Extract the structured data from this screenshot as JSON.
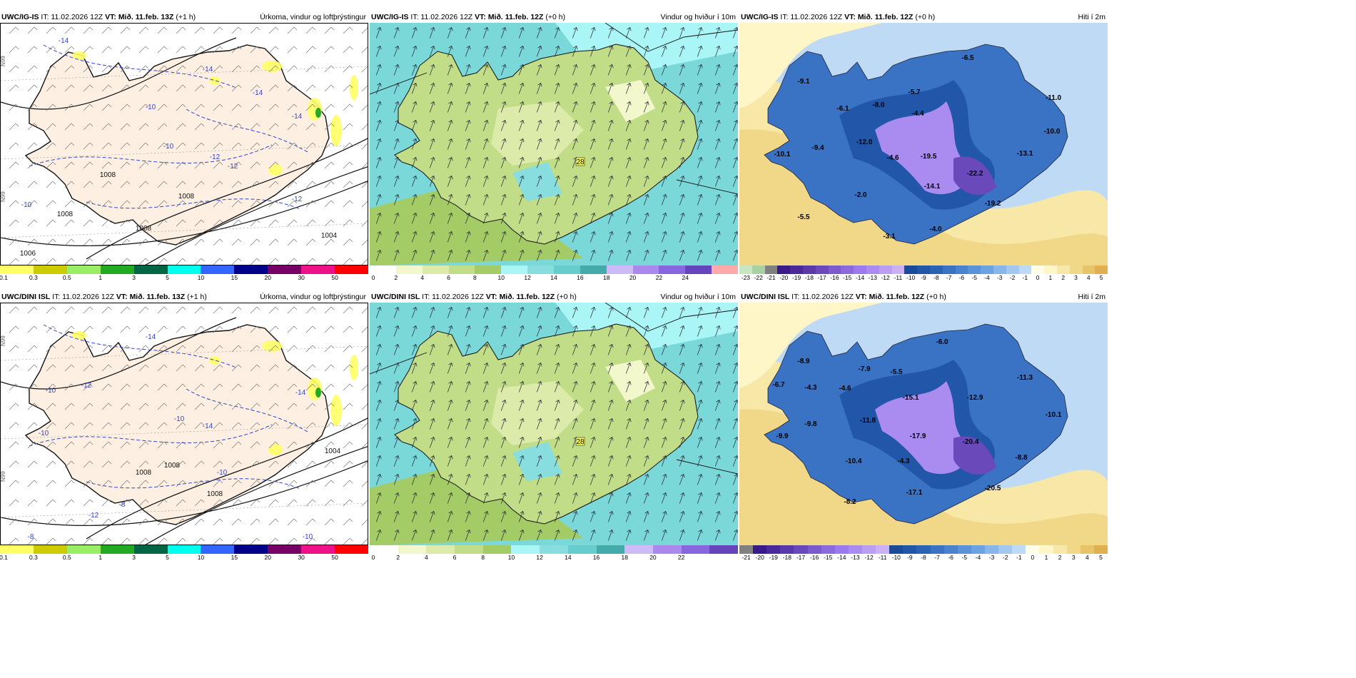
{
  "panels": [
    {
      "model": "UWC/IG-IS",
      "it": "IT: 11.02.2026 12Z",
      "vt_label": "VT:",
      "vt": "Mið. 11.feb. 13Z",
      "lead": "(+1 h)",
      "title": "Úrkoma, vindur og loftþrýstingur",
      "kind": "precip",
      "map_labels": [
        "-14",
        "-14",
        "-14",
        "-10",
        "-10",
        "-12",
        "-12",
        "-10",
        "-12",
        "-14",
        "1008",
        "1008",
        "1004",
        "1008",
        "1006",
        "1008"
      ],
      "legend_ticks": [
        "0.1",
        "0.3",
        "0.5",
        "1",
        "3",
        "5",
        "10",
        "15",
        "20",
        "30",
        "50"
      ],
      "legend_colors": [
        "#ffff66",
        "#cccc00",
        "#99ee66",
        "#22aa22",
        "#006644",
        "#00ffee",
        "#3366ff",
        "#000088",
        "#770066",
        "#ee1188",
        "#ff0000"
      ]
    },
    {
      "model": "UWC/IG-IS",
      "it": "IT: 11.02.2026 12Z",
      "vt_label": "VT:",
      "vt": "Mið. 11.feb. 12Z",
      "lead": "(+0 h)",
      "title": "Vindur og hviður í 10m",
      "kind": "wind",
      "map_labels": [
        "28"
      ],
      "legend_ticks": [
        "0",
        "2",
        "4",
        "6",
        "8",
        "10",
        "12",
        "14",
        "16",
        "18",
        "20",
        "22",
        "24"
      ],
      "legend_colors": [
        "#ffffff",
        "#f2f7cc",
        "#dcebaa",
        "#c2dd88",
        "#a4cc66",
        "#aaf6f6",
        "#88dede",
        "#66cccc",
        "#44aaaa",
        "#ccbbf6",
        "#aa88ee",
        "#8866dd",
        "#6644bb",
        "#ffaaaa"
      ]
    },
    {
      "model": "UWC/IG-IS",
      "it": "IT: 11.02.2026 12Z",
      "vt_label": "VT:",
      "vt": "Mið. 11.feb. 12Z",
      "lead": "(+0 h)",
      "title": "Hiti í 2m",
      "kind": "temp",
      "map_labels": [
        "-9.1",
        "-6.1",
        "-8.0",
        "-5.7",
        "-6.5",
        "-11.0",
        "-10.0",
        "-12.0",
        "-9.4",
        "-10.1",
        "-4.4",
        "-19.5",
        "-4.6",
        "-14.1",
        "-22.2",
        "-13.1",
        "-2.0",
        "-19.2",
        "-5.5",
        "-4.0",
        "-3.1"
      ],
      "legend_ticks": [
        "-23",
        "-22",
        "-21",
        "-20",
        "-19",
        "-18",
        "-17",
        "-16",
        "-15",
        "-14",
        "-13",
        "-12",
        "-11",
        "-10",
        "-9",
        "-8",
        "-7",
        "-6",
        "-5",
        "-4",
        "-3",
        "-2",
        "-1",
        "0",
        "1",
        "2",
        "3",
        "4",
        "5"
      ],
      "legend_colors": [
        "#c8e6c0",
        "#a8d0a0",
        "#808080",
        "#3a1a88",
        "#4a2a9a",
        "#5a3aaa",
        "#6a4abb",
        "#7a5acc",
        "#8a6add",
        "#9a7aee",
        "#aa8cf0",
        "#bb9ef2",
        "#ccb0f4",
        "#1a4a9a",
        "#2256a8",
        "#2a62b6",
        "#3a72c4",
        "#4a82d0",
        "#5a92da",
        "#6aa2e2",
        "#86b6ea",
        "#a2c8f0",
        "#bedaf4",
        "#fffde8",
        "#fff6c8",
        "#f8e8a8",
        "#f0d888",
        "#e8c468",
        "#e0b050"
      ]
    },
    {
      "model": "UWC/DINI ISL",
      "it": "IT: 11.02.2026 12Z",
      "vt_label": "VT:",
      "vt": "Mið. 11.feb. 13Z",
      "lead": "(+1 h)",
      "title": "Úrkoma, vindur og loftþrýstingur",
      "kind": "precip",
      "map_labels": [
        "-14",
        "-10",
        "-12",
        "-14",
        "-10",
        "-10",
        "-14",
        "-10",
        "-8",
        "-12",
        "-8",
        "-10",
        "1008",
        "1008",
        "1004",
        "1008"
      ],
      "legend_ticks": [
        "0.1",
        "0.3",
        "0.5",
        "1",
        "3",
        "5",
        "10",
        "15",
        "20",
        "30",
        "50"
      ],
      "legend_colors": [
        "#ffff66",
        "#cccc00",
        "#99ee66",
        "#22aa22",
        "#006644",
        "#00ffee",
        "#3366ff",
        "#000088",
        "#770066",
        "#ee1188",
        "#ff0000"
      ]
    },
    {
      "model": "UWC/DINI ISL",
      "it": "IT: 11.02.2026 12Z",
      "vt_label": "VT:",
      "vt": "Mið. 11.feb. 12Z",
      "lead": "(+0 h)",
      "title": "Vindur og hviður í 10m",
      "kind": "wind",
      "map_labels": [
        "28"
      ],
      "legend_ticks": [
        "0",
        "2",
        "4",
        "6",
        "8",
        "10",
        "12",
        "14",
        "16",
        "18",
        "20",
        "22"
      ],
      "legend_colors": [
        "#ffffff",
        "#f2f7cc",
        "#dcebaa",
        "#c2dd88",
        "#a4cc66",
        "#aaf6f6",
        "#88dede",
        "#66cccc",
        "#44aaaa",
        "#ccbbf6",
        "#aa88ee",
        "#8866dd",
        "#6644bb"
      ]
    },
    {
      "model": "UWC/DINI ISL",
      "it": "IT: 11.02.2026 12Z",
      "vt_label": "VT:",
      "vt": "Mið. 11.feb. 12Z",
      "lead": "(+0 h)",
      "title": "Hiti í 2m",
      "kind": "temp",
      "map_labels": [
        "-8.9",
        "-6.7",
        "-4.3",
        "-4.6",
        "-7.9",
        "-5.5",
        "-6.0",
        "-11.3",
        "-10.1",
        "-15.1",
        "-12.9",
        "-9.8",
        "-11.8",
        "-9.9",
        "-17.9",
        "-20.4",
        "-10.4",
        "-4.3",
        "-8.8",
        "-8.2",
        "-17.1",
        "-20.5"
      ],
      "legend_ticks": [
        "-21",
        "-20",
        "-19",
        "-18",
        "-17",
        "-16",
        "-15",
        "-14",
        "-13",
        "-12",
        "-11",
        "-10",
        "-9",
        "-8",
        "-7",
        "-6",
        "-5",
        "-4",
        "-3",
        "-2",
        "-1",
        "0",
        "1",
        "2",
        "3",
        "4",
        "5"
      ],
      "legend_colors": [
        "#808080",
        "#3a1a88",
        "#4a2a9a",
        "#5a3aaa",
        "#6a4abb",
        "#7a5acc",
        "#8a6add",
        "#9a7aee",
        "#aa8cf0",
        "#bb9ef2",
        "#ccb0f4",
        "#1a4a9a",
        "#2256a8",
        "#2a62b6",
        "#3a72c4",
        "#4a82d0",
        "#5a92da",
        "#6aa2e2",
        "#86b6ea",
        "#a2c8f0",
        "#bedaf4",
        "#fffde8",
        "#fff6c8",
        "#f8e8a8",
        "#f0d888",
        "#e8c468",
        "#e0b050"
      ]
    }
  ],
  "lat_labels": [
    "N99",
    "N99",
    "N99"
  ]
}
